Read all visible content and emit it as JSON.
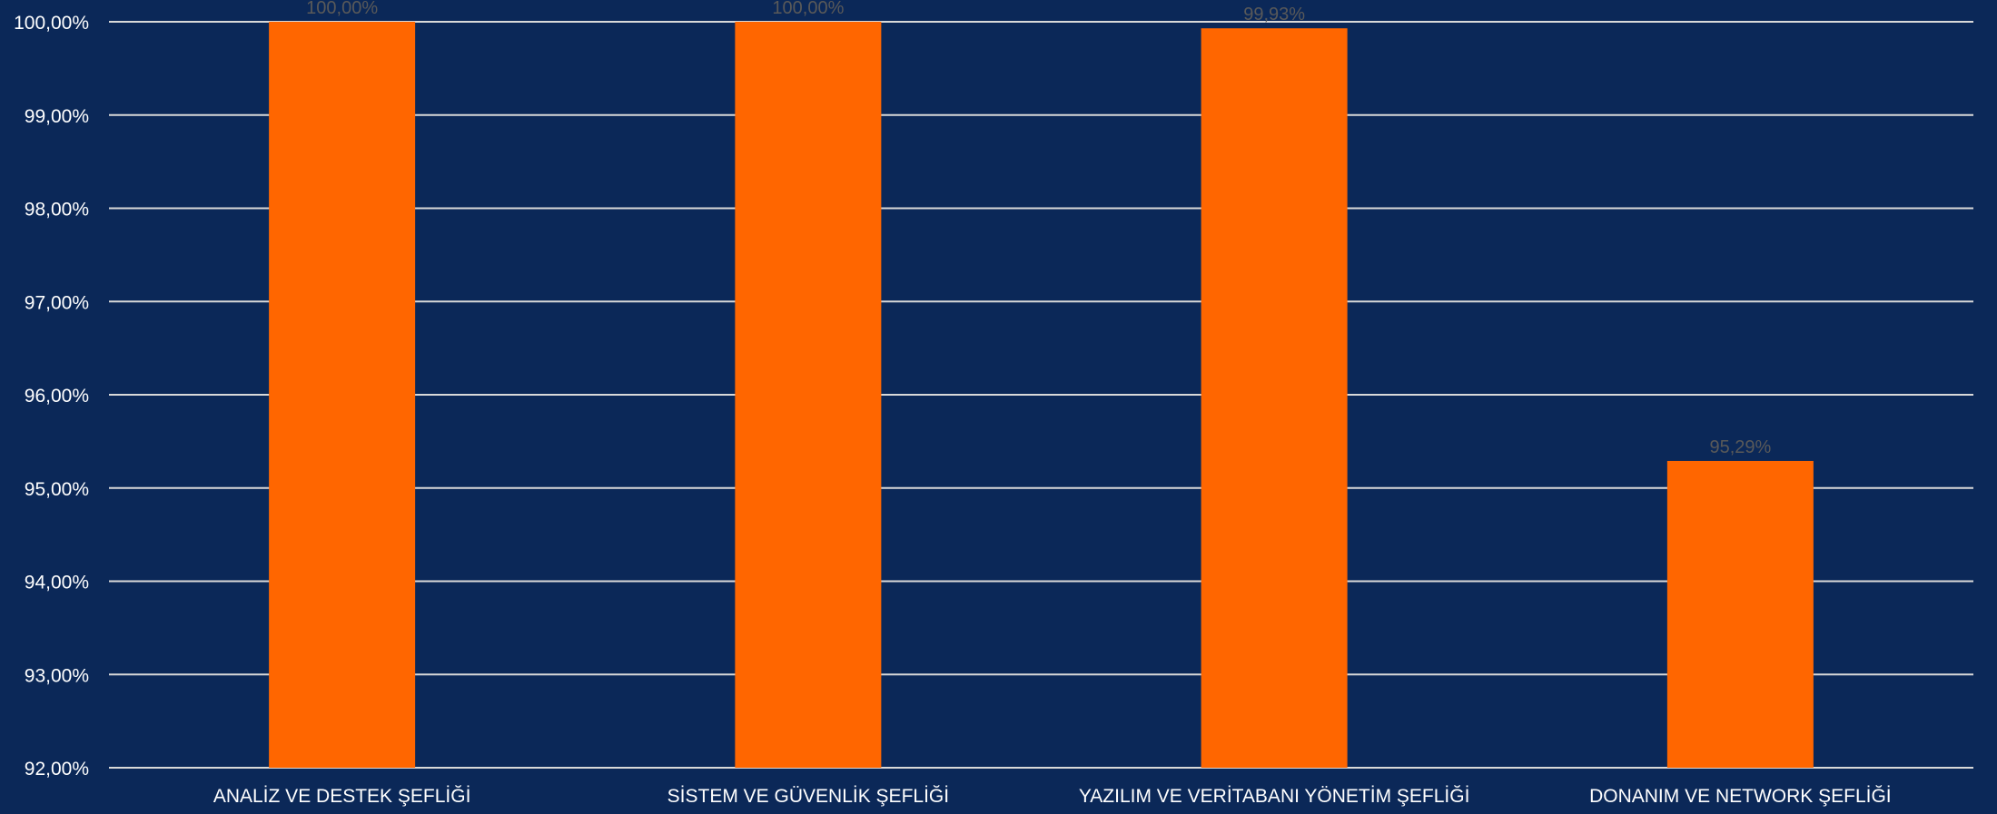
{
  "chart_data": {
    "type": "bar",
    "categories": [
      "ANALİZ VE DESTEK ŞEFLİĞİ",
      "SİSTEM VE GÜVENLİK ŞEFLİĞİ",
      "YAZILIM VE VERİTABANI YÖNETİM ŞEFLİĞİ",
      "DONANIM VE NETWORK ŞEFLİĞİ"
    ],
    "values": [
      100.0,
      100.0,
      99.93,
      95.29
    ],
    "data_labels": [
      "100,00%",
      "100,00%",
      "99,93%",
      "95,29%"
    ],
    "y_ticks": [
      "92,00%",
      "93,00%",
      "94,00%",
      "95,00%",
      "96,00%",
      "97,00%",
      "98,00%",
      "99,00%",
      "100,00%"
    ],
    "ylim": [
      92,
      100
    ],
    "grid": true,
    "title": "",
    "xlabel": "",
    "ylabel": ""
  },
  "colors": {
    "background": "#0b2858",
    "bar": "#ff6600",
    "grid": "#d9d9d9",
    "tick_text": "#ffffff",
    "data_label": "#595959"
  }
}
